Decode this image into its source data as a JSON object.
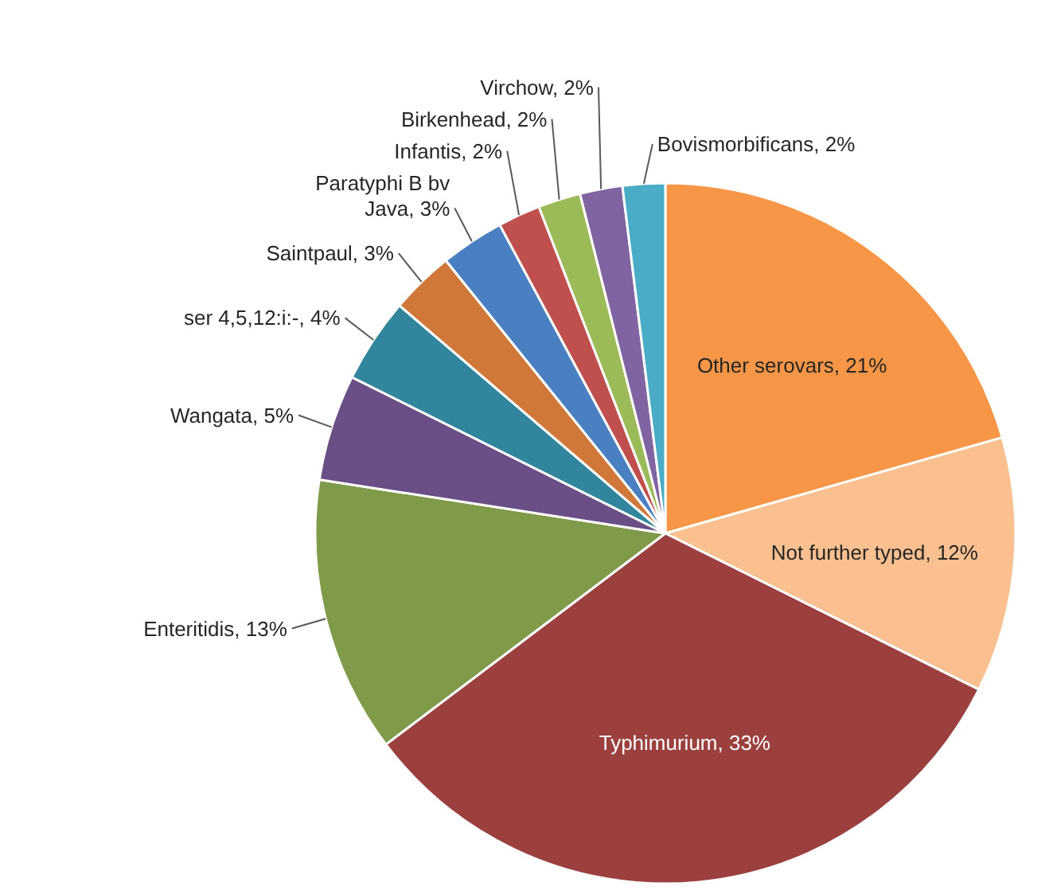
{
  "chart_data": {
    "type": "pie",
    "categories": [
      "Other serovars",
      "Not further typed",
      "Typhimurium",
      "Enteritidis",
      "Wangata",
      "ser 4,5,12:i:-",
      "Saintpaul",
      "Paratyphi B bv Java",
      "Infantis",
      "Birkenhead",
      "Virchow",
      "Bovismorbificans"
    ],
    "values": [
      21,
      12,
      33,
      13,
      5,
      4,
      3,
      3,
      2,
      2,
      2,
      2
    ],
    "value_labels": [
      "21%",
      "12%",
      "33%",
      "13%",
      "5%",
      "4%",
      "3%",
      "3%",
      "2%",
      "2%",
      "2%",
      "2%"
    ],
    "colors": [
      "#f79646",
      "#fac090",
      "#9b3f3f",
      "#7f9a48",
      "#6a4f86",
      "#31859c",
      "#d0773a",
      "#4a7fc1",
      "#c0504d",
      "#9bbb59",
      "#8064a2",
      "#4bacc6"
    ]
  }
}
